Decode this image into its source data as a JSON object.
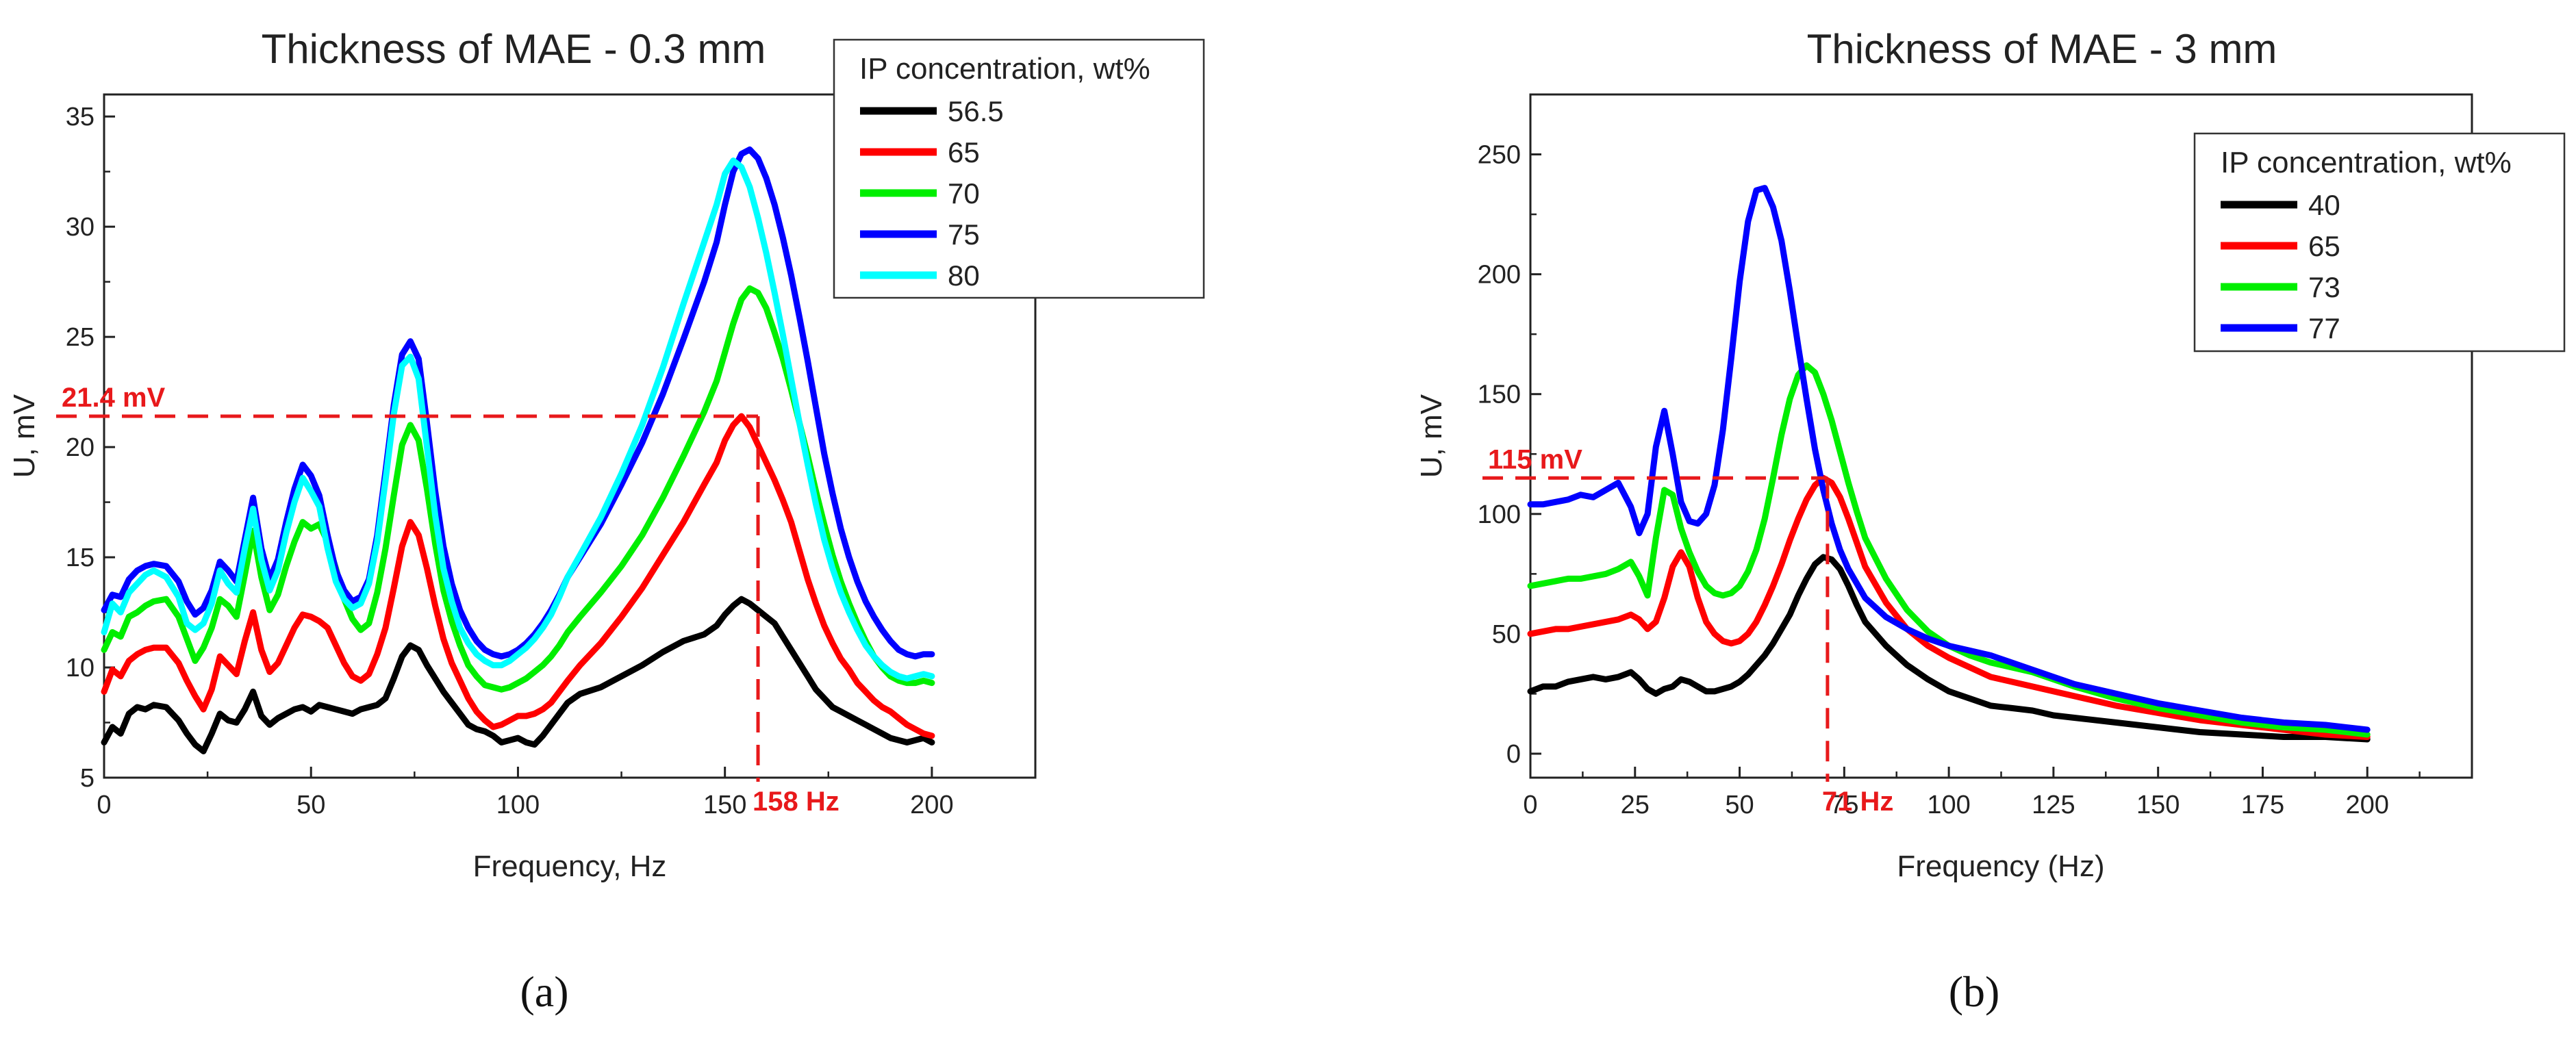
{
  "chart_data": [
    {
      "type": "line",
      "panel_label": "(a)",
      "title": "Thickness of MAE - 0.3 mm",
      "xlabel": "Frequency, Hz",
      "ylabel": "U, mV",
      "xlim": [
        0,
        225
      ],
      "ylim": [
        5,
        36
      ],
      "xticks": [
        0,
        50,
        100,
        150,
        200
      ],
      "yticks": [
        5,
        10,
        15,
        20,
        25,
        30,
        35
      ],
      "legend_title": "IP concentration, wt%",
      "legend_position": "top-right",
      "annotations": {
        "y_value": 21.4,
        "y_label": "21.4 mV",
        "x_value": 158,
        "x_label": "158 Hz",
        "color": "#e8191b"
      },
      "x": [
        0,
        2,
        4,
        6,
        8,
        10,
        12,
        15,
        18,
        20,
        22,
        24,
        26,
        28,
        30,
        32,
        34,
        36,
        38,
        40,
        42,
        44,
        46,
        48,
        50,
        52,
        54,
        56,
        58,
        60,
        62,
        64,
        66,
        68,
        70,
        72,
        74,
        76,
        78,
        80,
        82,
        84,
        86,
        88,
        90,
        92,
        94,
        96,
        98,
        100,
        102,
        104,
        106,
        108,
        110,
        112,
        115,
        120,
        125,
        130,
        135,
        140,
        145,
        148,
        150,
        152,
        154,
        156,
        158,
        160,
        162,
        164,
        166,
        168,
        170,
        172,
        174,
        176,
        178,
        180,
        182,
        184,
        186,
        188,
        190,
        192,
        194,
        196,
        198,
        200
      ],
      "series": [
        {
          "name": "56.5",
          "color": "#000000",
          "values": [
            6.6,
            7.3,
            7.0,
            7.9,
            8.2,
            8.1,
            8.3,
            8.2,
            7.6,
            7.0,
            6.5,
            6.2,
            7.0,
            7.9,
            7.6,
            7.5,
            8.1,
            8.9,
            7.8,
            7.4,
            7.7,
            7.9,
            8.1,
            8.2,
            8.0,
            8.3,
            8.2,
            8.1,
            8.0,
            7.9,
            8.1,
            8.2,
            8.3,
            8.6,
            9.5,
            10.5,
            11.0,
            10.8,
            10.1,
            9.5,
            8.9,
            8.4,
            7.9,
            7.4,
            7.2,
            7.1,
            6.9,
            6.6,
            6.7,
            6.8,
            6.6,
            6.5,
            6.9,
            7.4,
            7.9,
            8.4,
            8.8,
            9.1,
            9.6,
            10.1,
            10.7,
            11.2,
            11.5,
            11.9,
            12.4,
            12.8,
            13.1,
            12.9,
            12.6,
            12.3,
            12.0,
            11.4,
            10.8,
            10.2,
            9.6,
            9.0,
            8.6,
            8.2,
            8.0,
            7.8,
            7.6,
            7.4,
            7.2,
            7.0,
            6.8,
            6.7,
            6.6,
            6.7,
            6.8,
            6.6
          ]
        },
        {
          "name": "65",
          "color": "#ff0000",
          "values": [
            8.9,
            9.9,
            9.6,
            10.3,
            10.6,
            10.8,
            10.9,
            10.9,
            10.2,
            9.4,
            8.7,
            8.1,
            9.0,
            10.5,
            10.1,
            9.7,
            11.2,
            12.5,
            10.8,
            9.8,
            10.2,
            11.0,
            11.8,
            12.4,
            12.3,
            12.1,
            11.8,
            11.0,
            10.2,
            9.6,
            9.4,
            9.7,
            10.6,
            11.8,
            13.6,
            15.5,
            16.6,
            16.0,
            14.5,
            12.8,
            11.3,
            10.2,
            9.4,
            8.6,
            8.0,
            7.6,
            7.3,
            7.4,
            7.6,
            7.8,
            7.8,
            7.9,
            8.1,
            8.4,
            8.9,
            9.4,
            10.1,
            11.1,
            12.3,
            13.6,
            15.1,
            16.6,
            18.3,
            19.3,
            20.3,
            21.0,
            21.4,
            20.9,
            20.1,
            19.3,
            18.5,
            17.6,
            16.6,
            15.3,
            14.0,
            12.9,
            11.9,
            11.1,
            10.4,
            9.9,
            9.3,
            8.9,
            8.5,
            8.2,
            8.0,
            7.7,
            7.4,
            7.2,
            7.0,
            6.9
          ]
        },
        {
          "name": "70",
          "color": "#00ee00",
          "values": [
            10.8,
            11.6,
            11.4,
            12.3,
            12.5,
            12.8,
            13.0,
            13.1,
            12.3,
            11.3,
            10.3,
            10.9,
            11.8,
            13.1,
            12.8,
            12.3,
            14.2,
            16.2,
            14.1,
            12.6,
            13.3,
            14.6,
            15.7,
            16.6,
            16.3,
            16.5,
            15.7,
            14.5,
            13.1,
            12.2,
            11.7,
            12.0,
            13.4,
            15.4,
            17.8,
            20.1,
            21.0,
            20.3,
            18.1,
            15.6,
            13.5,
            12.1,
            11.0,
            10.1,
            9.6,
            9.2,
            9.1,
            9.0,
            9.1,
            9.3,
            9.5,
            9.8,
            10.1,
            10.5,
            11.0,
            11.6,
            12.3,
            13.4,
            14.6,
            16.0,
            17.7,
            19.6,
            21.6,
            23.0,
            24.3,
            25.6,
            26.7,
            27.2,
            27.0,
            26.3,
            25.2,
            24.0,
            22.6,
            21.1,
            19.6,
            18.0,
            16.5,
            15.1,
            13.9,
            12.9,
            12.0,
            11.2,
            10.5,
            10.0,
            9.6,
            9.4,
            9.3,
            9.3,
            9.4,
            9.3
          ]
        },
        {
          "name": "75",
          "color": "#0000ff",
          "values": [
            12.6,
            13.3,
            13.2,
            14.0,
            14.4,
            14.6,
            14.7,
            14.6,
            13.9,
            13.0,
            12.4,
            12.7,
            13.5,
            14.8,
            14.4,
            13.9,
            15.8,
            17.7,
            15.4,
            14.0,
            14.9,
            16.6,
            18.1,
            19.2,
            18.7,
            17.8,
            16.0,
            14.4,
            13.5,
            13.0,
            13.2,
            14.0,
            16.0,
            18.9,
            21.9,
            24.2,
            24.8,
            24.0,
            21.1,
            18.0,
            15.5,
            13.8,
            12.6,
            11.8,
            11.2,
            10.8,
            10.6,
            10.5,
            10.6,
            10.8,
            11.1,
            11.5,
            12.0,
            12.6,
            13.3,
            14.1,
            15.0,
            16.5,
            18.3,
            20.2,
            22.4,
            24.9,
            27.5,
            29.3,
            31.0,
            32.5,
            33.3,
            33.5,
            33.1,
            32.2,
            31.0,
            29.5,
            27.8,
            25.9,
            23.9,
            21.8,
            19.7,
            17.9,
            16.3,
            15.0,
            13.9,
            13.0,
            12.3,
            11.7,
            11.2,
            10.8,
            10.6,
            10.5,
            10.6,
            10.6
          ]
        },
        {
          "name": "80",
          "color": "#00ffff",
          "values": [
            11.6,
            12.9,
            12.5,
            13.4,
            13.8,
            14.2,
            14.4,
            14.1,
            13.2,
            12.0,
            11.7,
            12.0,
            12.9,
            14.4,
            13.8,
            13.4,
            15.4,
            17.2,
            14.9,
            13.5,
            14.4,
            16.1,
            17.5,
            18.6,
            18.0,
            17.3,
            15.4,
            13.9,
            13.1,
            12.7,
            12.9,
            13.8,
            15.7,
            18.5,
            21.5,
            23.7,
            24.1,
            23.1,
            20.0,
            16.9,
            14.5,
            13.0,
            11.8,
            11.1,
            10.6,
            10.3,
            10.1,
            10.1,
            10.3,
            10.6,
            10.9,
            11.3,
            11.8,
            12.4,
            13.2,
            14.1,
            15.1,
            16.8,
            18.8,
            21.0,
            23.6,
            26.5,
            29.3,
            31.0,
            32.4,
            33.0,
            32.7,
            31.8,
            30.4,
            28.8,
            27.0,
            25.1,
            23.1,
            21.1,
            19.2,
            17.4,
            15.8,
            14.5,
            13.4,
            12.5,
            11.7,
            11.0,
            10.5,
            10.1,
            9.8,
            9.6,
            9.5,
            9.6,
            9.7,
            9.6
          ]
        }
      ]
    },
    {
      "type": "line",
      "panel_label": "(b)",
      "title": "Thickness of MAE - 3 mm",
      "xlabel": "Frequency (Hz)",
      "ylabel": "U, mV",
      "xlim": [
        0,
        225
      ],
      "ylim": [
        -10,
        275
      ],
      "xticks": [
        0,
        25,
        50,
        75,
        100,
        125,
        150,
        175,
        200
      ],
      "yticks": [
        0,
        50,
        100,
        150,
        200,
        250
      ],
      "legend_title": "IP concentration, wt%",
      "legend_position": "top-right",
      "annotations": {
        "y_value": 115,
        "y_label": "115 mV",
        "x_value": 71,
        "x_label": "71 Hz",
        "color": "#e8191b"
      },
      "x": [
        0,
        3,
        6,
        9,
        12,
        15,
        18,
        21,
        24,
        26,
        28,
        30,
        32,
        34,
        36,
        38,
        40,
        42,
        44,
        46,
        48,
        50,
        52,
        54,
        56,
        58,
        60,
        62,
        64,
        66,
        68,
        70,
        72,
        74,
        76,
        78,
        80,
        85,
        90,
        95,
        100,
        105,
        110,
        115,
        120,
        125,
        130,
        140,
        150,
        160,
        170,
        180,
        190,
        200
      ],
      "series": [
        {
          "name": "40",
          "color": "#000000",
          "values": [
            26,
            28,
            28,
            30,
            31,
            32,
            31,
            32,
            34,
            31,
            27,
            25,
            27,
            28,
            31,
            30,
            28,
            26,
            26,
            27,
            28,
            30,
            33,
            37,
            41,
            46,
            52,
            58,
            66,
            73,
            79,
            82,
            81,
            77,
            70,
            62,
            55,
            45,
            37,
            31,
            26,
            23,
            20,
            19,
            18,
            16,
            15,
            13,
            11,
            9,
            8,
            7,
            7,
            6
          ]
        },
        {
          "name": "65",
          "color": "#ff0000",
          "values": [
            50,
            51,
            52,
            52,
            53,
            54,
            55,
            56,
            58,
            56,
            52,
            55,
            65,
            78,
            84,
            78,
            65,
            55,
            50,
            47,
            46,
            47,
            50,
            55,
            62,
            70,
            79,
            89,
            98,
            106,
            112,
            115,
            113,
            107,
            98,
            88,
            78,
            63,
            52,
            45,
            40,
            36,
            32,
            30,
            28,
            26,
            24,
            20,
            17,
            14,
            12,
            10,
            8,
            7
          ]
        },
        {
          "name": "73",
          "color": "#00ee00",
          "values": [
            70,
            71,
            72,
            73,
            73,
            74,
            75,
            77,
            80,
            74,
            66,
            90,
            110,
            108,
            94,
            84,
            76,
            70,
            67,
            66,
            67,
            70,
            76,
            85,
            98,
            115,
            133,
            148,
            158,
            162,
            159,
            150,
            139,
            126,
            113,
            101,
            90,
            73,
            60,
            51,
            45,
            41,
            38,
            36,
            34,
            31,
            28,
            23,
            19,
            16,
            13,
            11,
            10,
            8
          ]
        },
        {
          "name": "77",
          "color": "#0000ff",
          "values": [
            104,
            104,
            105,
            106,
            108,
            107,
            110,
            113,
            103,
            92,
            100,
            128,
            143,
            125,
            105,
            97,
            96,
            100,
            112,
            135,
            165,
            197,
            222,
            235,
            236,
            228,
            214,
            193,
            170,
            148,
            127,
            110,
            96,
            85,
            77,
            71,
            65,
            57,
            52,
            48,
            45,
            43,
            41,
            38,
            35,
            32,
            29,
            25,
            21,
            18,
            15,
            13,
            12,
            10
          ]
        }
      ]
    }
  ]
}
